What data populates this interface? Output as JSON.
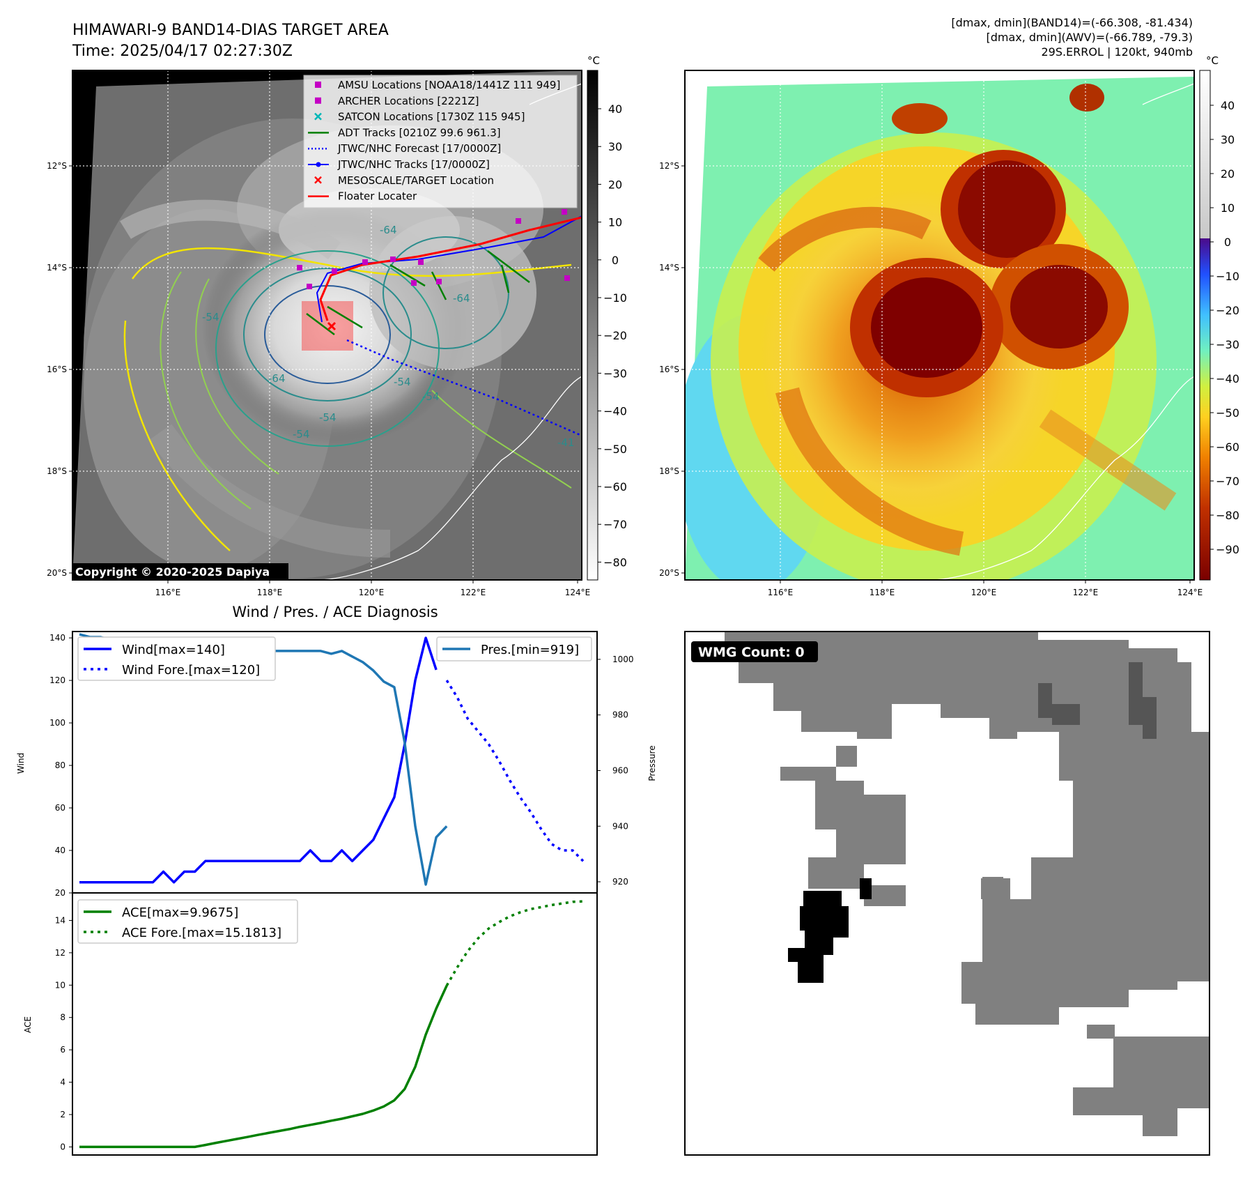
{
  "header": {
    "title_line1": "HIMAWARI-9 BAND14-DIAS TARGET AREA",
    "title_line2": "Time: 2025/04/17 02:27:30Z",
    "stats_line1": "[dmax, dmin](BAND14)=(-66.308, -81.434)",
    "stats_line2": "[dmax, dmin](AWV)=(-66.789, -79.3)",
    "stats_line3": "29S.ERROL | 120kt, 940mb",
    "copyright": "Copyright © 2020-2025 Dapiya",
    "wmg_label": "WMG Count: 0"
  },
  "map": {
    "lat_labels": [
      "12°S",
      "14°S",
      "16°S",
      "18°S",
      "20°S"
    ],
    "lon_labels": [
      "116°E",
      "118°E",
      "120°E",
      "122°E",
      "124°E"
    ],
    "contour_labels": [
      "-64",
      "-54",
      "-64",
      "-54",
      "-54",
      "-64",
      "-54",
      "-54",
      "-41"
    ]
  },
  "legend": {
    "items": [
      {
        "label": "AMSU Locations [NOAA18/1441Z 111 949]",
        "color": "#c400c4",
        "kind": "square"
      },
      {
        "label": "ARCHER Locations [2221Z]",
        "color": "#c400c4",
        "kind": "square"
      },
      {
        "label": "SATCON Locations [1730Z 115 945]",
        "color": "#00b7b7",
        "kind": "x"
      },
      {
        "label": "ADT Tracks [0210Z 99.6 961.3]",
        "color": "#008000",
        "kind": "line"
      },
      {
        "label": "JTWC/NHC Forecast [17/0000Z]",
        "color": "#0000ff",
        "kind": "dotted"
      },
      {
        "label": "JTWC/NHC Tracks [17/0000Z]",
        "color": "#0000ff",
        "kind": "dotline"
      },
      {
        "label": "MESOSCALE/TARGET Location",
        "color": "#ff0000",
        "kind": "x"
      },
      {
        "label": "Floater Locater",
        "color": "#ff0000",
        "kind": "line"
      }
    ]
  },
  "colorbars": {
    "unit": "°C",
    "gray_ticks": [
      "40",
      "30",
      "20",
      "10",
      "0",
      "−10",
      "−20",
      "−30",
      "−40",
      "−50",
      "−60",
      "−70",
      "−80"
    ],
    "color_ticks": [
      "40",
      "30",
      "20",
      "10",
      "0",
      "−10",
      "−20",
      "−30",
      "−40",
      "−50",
      "−60",
      "−70",
      "−80",
      "−90"
    ]
  },
  "colors": {
    "wind": "#0000ff",
    "pressure": "#1f77b4",
    "ace": "#008000",
    "floater": "#ff0000"
  },
  "chart_data": [
    {
      "type": "line",
      "title": "Wind / Pres. / ACE Diagnosis",
      "ylabel": "Wind",
      "ylabel_right": "Pressure",
      "ylim": [
        20,
        143
      ],
      "ylim_right": [
        916,
        1010
      ],
      "yticks": [
        "140",
        "120",
        "100",
        "80",
        "60",
        "40",
        "20"
      ],
      "yticks_right": [
        "1000",
        "980",
        "960",
        "940",
        "920"
      ],
      "legend_left": [
        "Wind[max=140]",
        "Wind Fore.[max=120]"
      ],
      "legend_right": [
        "Pres.[min=919]"
      ],
      "series": [
        {
          "name": "Wind[max=140]",
          "style": "solid",
          "x": [
            0,
            1,
            2,
            3,
            4,
            5,
            6,
            7,
            8,
            9,
            10,
            11,
            12,
            13,
            14,
            15,
            16,
            17,
            18,
            19,
            20,
            21,
            22,
            23,
            24,
            25,
            26,
            27,
            28,
            29,
            30,
            31,
            32,
            33,
            34
          ],
          "values": [
            25,
            25,
            25,
            25,
            25,
            25,
            25,
            25,
            30,
            25,
            30,
            30,
            35,
            35,
            35,
            35,
            35,
            35,
            35,
            35,
            35,
            35,
            40,
            35,
            35,
            40,
            35,
            40,
            45,
            55,
            65,
            90,
            120,
            140,
            125
          ]
        },
        {
          "name": "Wind Fore.[max=120]",
          "style": "dotted",
          "x": [
            35,
            36,
            37,
            38,
            39,
            40,
            41,
            42,
            43,
            44,
            45,
            46,
            47,
            48
          ],
          "values": [
            120,
            112,
            102,
            96,
            90,
            82,
            73,
            65,
            58,
            50,
            43,
            40,
            40,
            35
          ]
        },
        {
          "name": "Pres.[min=919]",
          "style": "solid",
          "axis": "right",
          "x": [
            0,
            1,
            2,
            3,
            4,
            5,
            6,
            7,
            8,
            9,
            10,
            11,
            12,
            13,
            14,
            15,
            16,
            17,
            18,
            19,
            20,
            21,
            22,
            23,
            24,
            25,
            26,
            27,
            28,
            29,
            30,
            31,
            32,
            33,
            34,
            35
          ],
          "values": [
            1009,
            1008,
            1008,
            1007,
            1005,
            1004,
            1004,
            1003,
            1003,
            1003,
            1003,
            1003,
            1003,
            1003,
            1003,
            1003,
            1003,
            1003,
            1003,
            1003,
            1003,
            1003,
            1003,
            1003,
            1002,
            1003,
            1001,
            999,
            996,
            992,
            990,
            970,
            940,
            919,
            936,
            940
          ]
        }
      ]
    },
    {
      "type": "line",
      "ylabel": "ACE",
      "ylim": [
        -0.5,
        15.7
      ],
      "yticks": [
        "14",
        "12",
        "10",
        "8",
        "6",
        "4",
        "2",
        "0"
      ],
      "legend": [
        "ACE[max=9.9675]",
        "ACE Fore.[max=15.1813]"
      ],
      "series": [
        {
          "name": "ACE[max=9.9675]",
          "style": "solid",
          "x": [
            0,
            1,
            2,
            3,
            4,
            5,
            6,
            7,
            8,
            9,
            10,
            11,
            12,
            13,
            14,
            15,
            16,
            17,
            18,
            19,
            20,
            21,
            22,
            23,
            24,
            25,
            26,
            27,
            28,
            29,
            30,
            31,
            32,
            33,
            34,
            35
          ],
          "values": [
            0,
            0,
            0,
            0,
            0,
            0,
            0,
            0,
            0,
            0,
            0,
            0,
            0.12,
            0.25,
            0.37,
            0.49,
            0.61,
            0.74,
            0.86,
            0.98,
            1.1,
            1.24,
            1.36,
            1.48,
            1.62,
            1.74,
            1.89,
            2.04,
            2.25,
            2.5,
            2.88,
            3.58,
            4.95,
            6.94,
            8.55,
            9.97
          ]
        },
        {
          "name": "ACE Fore.[max=15.1813]",
          "style": "dotted",
          "x": [
            35,
            36,
            37,
            38,
            39,
            40,
            41,
            42,
            43,
            44,
            45,
            46,
            47,
            48
          ],
          "values": [
            9.97,
            11.1,
            12.1,
            12.9,
            13.5,
            13.9,
            14.25,
            14.5,
            14.7,
            14.82,
            14.95,
            15.05,
            15.15,
            15.18
          ]
        }
      ]
    }
  ]
}
